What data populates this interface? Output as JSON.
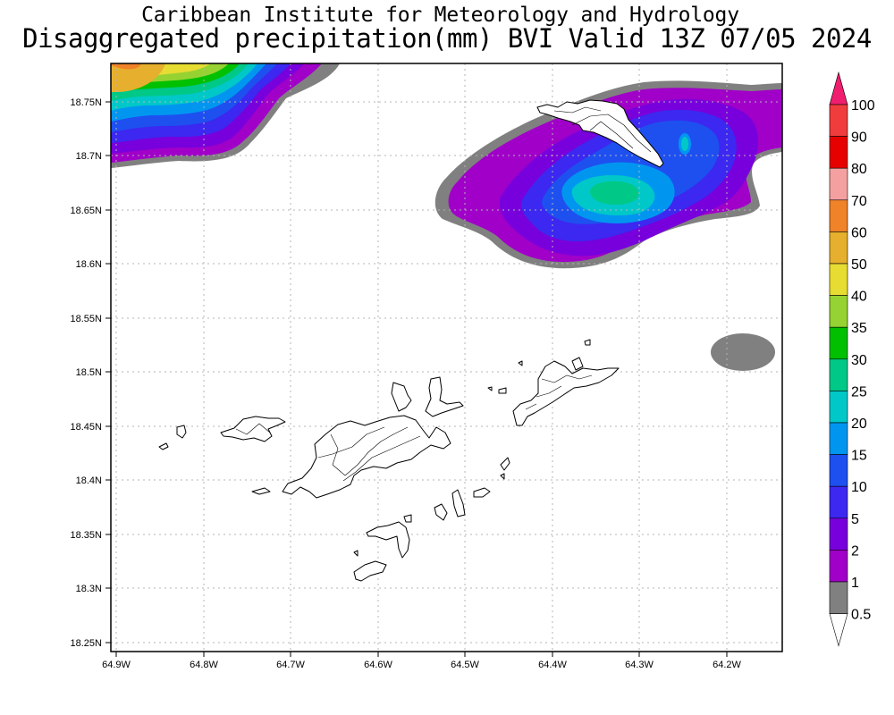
{
  "title": "Caribbean Institute for Meteorology and Hydrology",
  "subtitle": "Disaggregated precipitation(mm) BVI Valid 13Z 07/05 2024",
  "lat_ticks": [
    "18.75N",
    "18.7N",
    "18.65N",
    "18.6N",
    "18.55N",
    "18.5N",
    "18.45N",
    "18.4N",
    "18.35N",
    "18.3N",
    "18.25N"
  ],
  "lon_ticks": [
    "64.9W",
    "64.8W",
    "64.7W",
    "64.6W",
    "64.5W",
    "64.4W",
    "64.3W",
    "64.2W"
  ],
  "legend": {
    "levels": [
      "100",
      "90",
      "80",
      "70",
      "60",
      "50",
      "40",
      "35",
      "30",
      "25",
      "20",
      "15",
      "10",
      "5",
      "2",
      "1",
      "0.5"
    ],
    "colors": [
      "#f01e6e",
      "#f03c3c",
      "#e60000",
      "#f5a0a0",
      "#f08228",
      "#e6af2d",
      "#e6dc32",
      "#96d232",
      "#00c000",
      "#00c887",
      "#00c8c8",
      "#0096f0",
      "#1e50f0",
      "#3c28f0",
      "#7800dc",
      "#a000c8",
      "#808080"
    ]
  },
  "map": {
    "extent": {
      "lon_west": 64.905,
      "lon_east": 64.14,
      "lat_south": 18.24,
      "lat_north": 18.785
    },
    "grid": true,
    "field": "Disaggregated precipitation (mm)"
  }
}
